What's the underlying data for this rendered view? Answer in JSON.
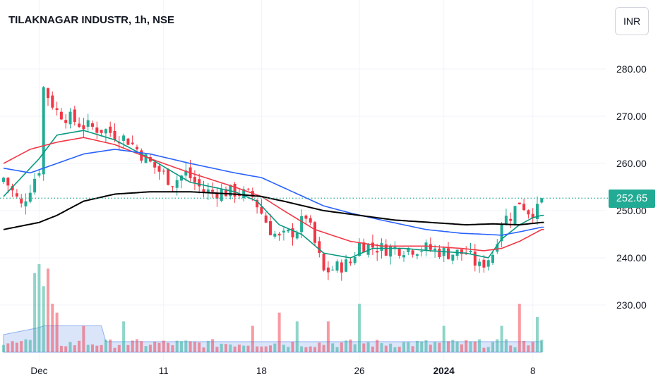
{
  "header": {
    "title": "TILAKNAGAR INDUSTR, 1h, NSE",
    "currency_label": "INR"
  },
  "last_price_label": "252.65",
  "colors": {
    "up": "#22ab94",
    "down": "#f23645",
    "ma_green": "#089981",
    "ma_red": "#f23645",
    "ma_blue": "#2962ff",
    "ma_black": "#000000",
    "volume_area": "#bbd0f5",
    "grid": "#f0f3fa"
  },
  "chart_data": {
    "type": "candlestick",
    "title": "TILAKNAGAR INDUSTR, 1h, NSE",
    "currency": "INR",
    "last_price": 252.65,
    "y_ticks": [
      "280.00",
      "270.00",
      "260.00",
      "250.00",
      "240.00",
      "230.00"
    ],
    "y_tick_values": [
      280,
      270,
      260,
      250,
      240,
      230
    ],
    "ylim": [
      220,
      290
    ],
    "x_ticks": [
      {
        "label": "Dec",
        "index": 8,
        "bold": false
      },
      {
        "label": "11",
        "index": 36,
        "bold": false
      },
      {
        "label": "18",
        "index": 58,
        "bold": false
      },
      {
        "label": "26",
        "index": 80,
        "bold": false
      },
      {
        "label": "2024",
        "index": 99,
        "bold": true
      },
      {
        "label": "8",
        "index": 119,
        "bold": false
      }
    ],
    "n_bars": 122,
    "close_anchors": [
      [
        0,
        257
      ],
      [
        4,
        251
      ],
      [
        8,
        259
      ],
      [
        9,
        276
      ],
      [
        12,
        271
      ],
      [
        18,
        268
      ],
      [
        23,
        267
      ],
      [
        28,
        265
      ],
      [
        33,
        260
      ],
      [
        38,
        256
      ],
      [
        41,
        258
      ],
      [
        45,
        254
      ],
      [
        52,
        254
      ],
      [
        56,
        253
      ],
      [
        60,
        246
      ],
      [
        62,
        244
      ],
      [
        66,
        246
      ],
      [
        68,
        249
      ],
      [
        70,
        243
      ],
      [
        72,
        237
      ],
      [
        75,
        238
      ],
      [
        78,
        239
      ],
      [
        80,
        243
      ],
      [
        85,
        242
      ],
      [
        90,
        242
      ],
      [
        95,
        242
      ],
      [
        100,
        241
      ],
      [
        104,
        241
      ],
      [
        107,
        238
      ],
      [
        110,
        241
      ],
      [
        112,
        248
      ],
      [
        114,
        249
      ],
      [
        116,
        252
      ],
      [
        118,
        250
      ],
      [
        120,
        250
      ],
      [
        121,
        252.65
      ]
    ],
    "moving_averages": [
      {
        "color": "#089981",
        "points": [
          [
            0,
            253
          ],
          [
            8,
            261
          ],
          [
            12,
            266
          ],
          [
            18,
            267
          ],
          [
            25,
            265
          ],
          [
            33,
            261
          ],
          [
            42,
            256
          ],
          [
            52,
            254
          ],
          [
            57,
            252
          ],
          [
            62,
            247
          ],
          [
            67,
            245
          ],
          [
            72,
            241
          ],
          [
            78,
            240
          ],
          [
            83,
            242
          ],
          [
            90,
            242
          ],
          [
            96,
            241.5
          ],
          [
            104,
            241
          ],
          [
            109,
            240
          ],
          [
            112,
            244
          ],
          [
            116,
            247
          ],
          [
            119,
            248.5
          ],
          [
            121,
            249
          ]
        ]
      },
      {
        "color": "#f23645",
        "points": [
          [
            0,
            260
          ],
          [
            6,
            263
          ],
          [
            12,
            264.5
          ],
          [
            18,
            265.5
          ],
          [
            25,
            264
          ],
          [
            33,
            261
          ],
          [
            42,
            258
          ],
          [
            52,
            255
          ],
          [
            58,
            253
          ],
          [
            63,
            250
          ],
          [
            70,
            246
          ],
          [
            78,
            243.5
          ],
          [
            85,
            242.5
          ],
          [
            95,
            242.5
          ],
          [
            103,
            242
          ],
          [
            108,
            241.5
          ],
          [
            112,
            242
          ],
          [
            116,
            243.5
          ],
          [
            121,
            246
          ]
        ]
      },
      {
        "color": "#2962ff",
        "points": [
          [
            0,
            259
          ],
          [
            6,
            258
          ],
          [
            12,
            260
          ],
          [
            18,
            262
          ],
          [
            25,
            263
          ],
          [
            33,
            262
          ],
          [
            42,
            260
          ],
          [
            52,
            258
          ],
          [
            58,
            257
          ],
          [
            65,
            254
          ],
          [
            72,
            251
          ],
          [
            78,
            249.5
          ],
          [
            85,
            248
          ],
          [
            95,
            246
          ],
          [
            103,
            245.2
          ],
          [
            108,
            245
          ],
          [
            112,
            244.8
          ],
          [
            116,
            245.5
          ],
          [
            121,
            246.5
          ]
        ]
      },
      {
        "color": "#000000",
        "points": [
          [
            0,
            246
          ],
          [
            8,
            247.5
          ],
          [
            12,
            249
          ],
          [
            18,
            252
          ],
          [
            25,
            253.5
          ],
          [
            33,
            254
          ],
          [
            42,
            254
          ],
          [
            52,
            253.5
          ],
          [
            58,
            253
          ],
          [
            63,
            252
          ],
          [
            72,
            250
          ],
          [
            80,
            249
          ],
          [
            88,
            248
          ],
          [
            96,
            247.5
          ],
          [
            104,
            247
          ],
          [
            110,
            247.2
          ],
          [
            116,
            247
          ],
          [
            121,
            247.5
          ]
        ]
      }
    ],
    "volume_spikes": [
      [
        7,
        0.9
      ],
      [
        8,
        1.0
      ],
      [
        9,
        0.75
      ],
      [
        10,
        0.95
      ],
      [
        11,
        0.55
      ],
      [
        12,
        0.45
      ],
      [
        18,
        0.3
      ],
      [
        27,
        0.35
      ],
      [
        56,
        0.3
      ],
      [
        62,
        0.45
      ],
      [
        66,
        0.35
      ],
      [
        73,
        0.35
      ],
      [
        80,
        0.55
      ],
      [
        99,
        0.3
      ],
      [
        112,
        0.3
      ],
      [
        116,
        0.55
      ],
      [
        120,
        0.4
      ]
    ]
  }
}
